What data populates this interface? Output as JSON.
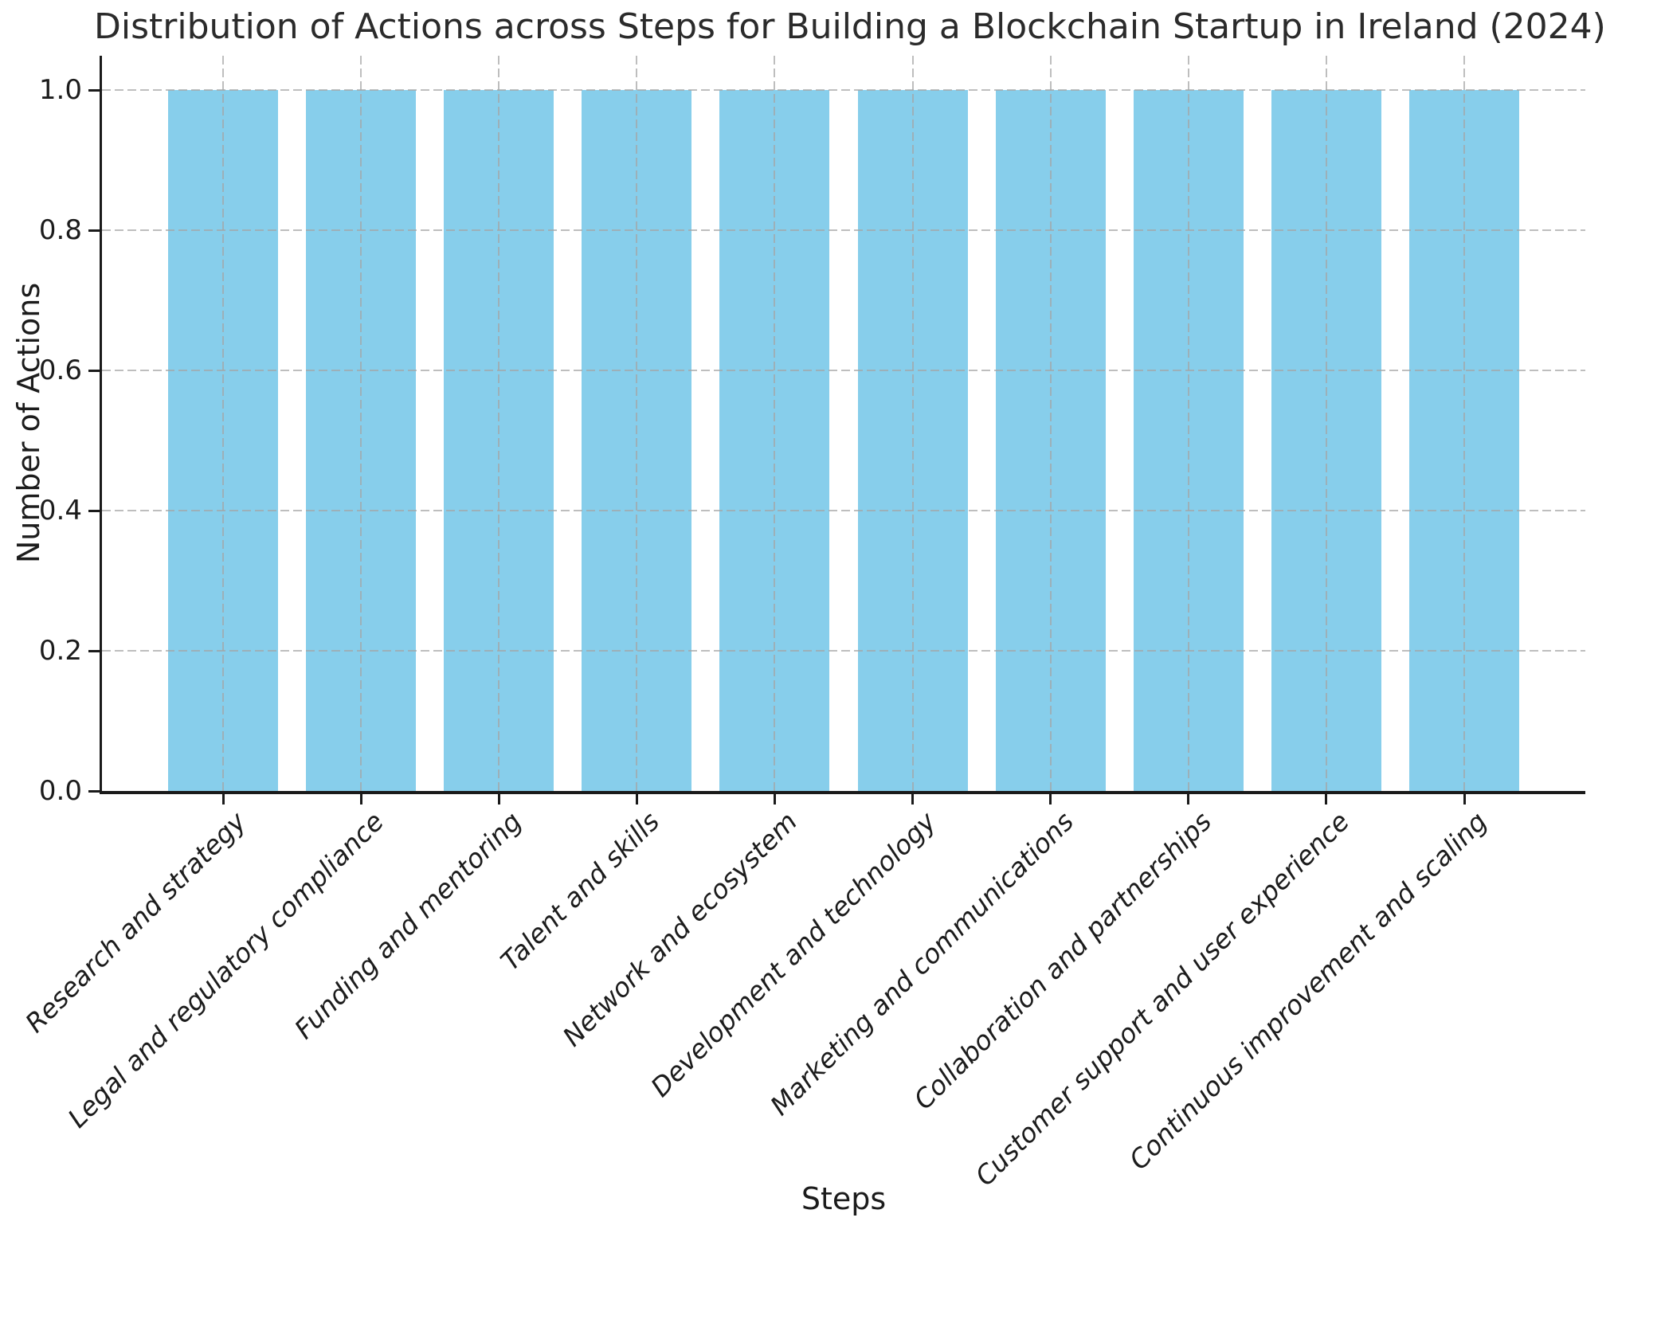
{
  "chart_data": {
    "type": "bar",
    "title": "Distribution of Actions across Steps for Building a Blockchain Startup in Ireland (2024)",
    "xlabel": "Steps",
    "ylabel": "Number of Actions",
    "categories": [
      "Research and strategy",
      "Legal and regulatory compliance",
      "Funding and mentoring",
      "Talent and skills",
      "Network and ecosystem",
      "Development and technology",
      "Marketing and communications",
      "Collaboration and partnerships",
      "Customer support and user experience",
      "Continuous improvement and scaling"
    ],
    "values": [
      1,
      1,
      1,
      1,
      1,
      1,
      1,
      1,
      1,
      1
    ],
    "yticks": [
      "0.0",
      "0.2",
      "0.4",
      "0.6",
      "0.8",
      "1.0"
    ],
    "ylim": [
      0.0,
      1.05
    ],
    "bar_color": "#87CEEB",
    "grid": "dashed gray, horizontal and vertical, drawn over bars",
    "x_tick_label_style": "italic, rotated 45 degrees",
    "legend": "none"
  }
}
